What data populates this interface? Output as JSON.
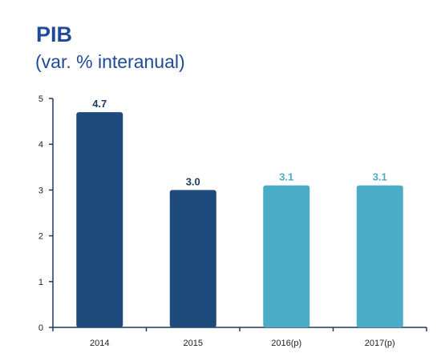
{
  "chart_data": {
    "type": "bar",
    "title": "PIB",
    "subtitle": "(var. % interanual)",
    "categories": [
      "2014",
      "2015",
      "2016(p)",
      "2017(p)"
    ],
    "values": [
      4.7,
      3.0,
      3.1,
      3.1
    ],
    "data_labels": [
      "4.7",
      "3.0",
      "3.1",
      "3.1"
    ],
    "bar_colors": [
      "#1f4a7c",
      "#1f4a7c",
      "#4bacc6",
      "#4bacc6"
    ],
    "label_colors": [
      "#1f3a64",
      "#1f3a64",
      "#4bacc6",
      "#4bacc6"
    ],
    "ylim": [
      0,
      5
    ],
    "yticks": [
      0,
      1,
      2,
      3,
      4,
      5
    ],
    "grid": false,
    "legend": "none"
  }
}
